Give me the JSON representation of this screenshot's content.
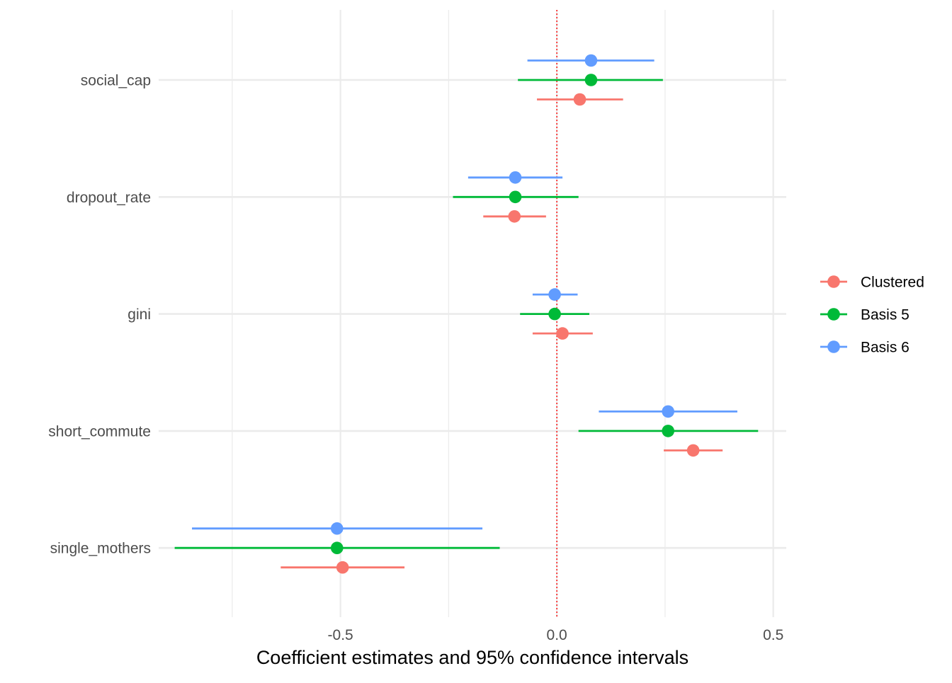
{
  "chart_data": {
    "type": "scatter",
    "subtype": "coefficient-plot-with-interval-bars",
    "orientation": "horizontal",
    "xlabel": "Coefficient estimates and 95% confidence intervals",
    "ylabel": "",
    "xlim": [
      -0.92,
      0.53
    ],
    "x_ticks": [
      -0.5,
      0.0,
      0.5
    ],
    "x_tick_labels": [
      "-0.5",
      "0.0",
      "0.5"
    ],
    "reference_line": {
      "x": 0,
      "style": "dotted",
      "color": "#ff0000"
    },
    "grid": true,
    "legend_position": "right",
    "categories": [
      "social_cap",
      "dropout_rate",
      "gini",
      "short_commute",
      "single_mothers"
    ],
    "series": [
      {
        "name": "Clustered",
        "color": "#F8766D",
        "estimate": [
          0.053,
          -0.098,
          0.013,
          0.315,
          -0.495
        ],
        "lower": [
          -0.046,
          -0.17,
          -0.056,
          0.247,
          -0.638
        ],
        "upper": [
          0.153,
          -0.025,
          0.083,
          0.383,
          -0.352
        ]
      },
      {
        "name": "Basis 5",
        "color": "#00BA38",
        "estimate": [
          0.079,
          -0.096,
          -0.005,
          0.257,
          -0.508
        ],
        "lower": [
          -0.09,
          -0.24,
          -0.085,
          0.05,
          -0.883
        ],
        "upper": [
          0.245,
          0.05,
          0.075,
          0.465,
          -0.132
        ]
      },
      {
        "name": "Basis 6",
        "color": "#619CFF",
        "estimate": [
          0.079,
          -0.096,
          -0.005,
          0.257,
          -0.508
        ],
        "lower": [
          -0.068,
          -0.205,
          -0.056,
          0.097,
          -0.843
        ],
        "upper": [
          0.225,
          0.013,
          0.048,
          0.417,
          -0.172
        ]
      }
    ]
  }
}
